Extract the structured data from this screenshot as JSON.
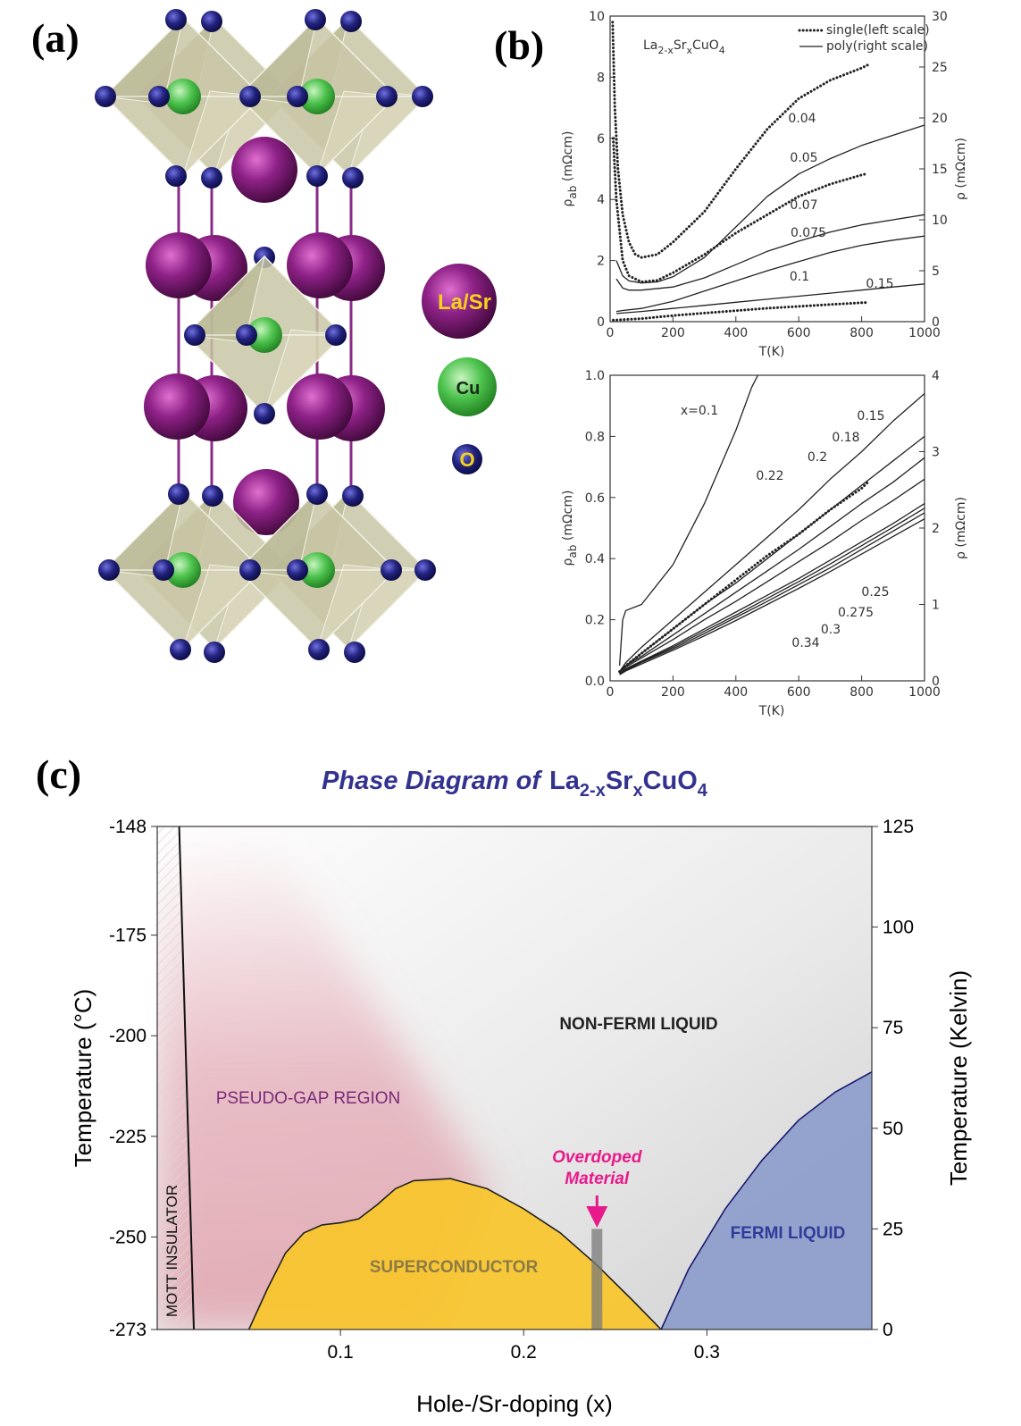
{
  "panel_labels": [
    "(a)",
    "(b)",
    "(c)"
  ],
  "structure": {
    "legend": [
      "La/Sr",
      "Cu",
      "O"
    ]
  },
  "chart_data": [
    {
      "type": "line",
      "title_parts": [
        "La",
        "2-x",
        "Sr",
        "x",
        "CuO",
        "4"
      ],
      "legend": [
        {
          "label": "single(left scale)",
          "style": "dotted"
        },
        {
          "label": "poly(right scale)",
          "style": "solid"
        }
      ],
      "x_label": "T(K)",
      "y_label_parts": [
        "ρ",
        "ab",
        " (mΩcm)"
      ],
      "y2_label": "ρ (mΩcm)",
      "xlim": [
        0,
        1000
      ],
      "xticks": [
        0,
        200,
        400,
        600,
        800,
        1000
      ],
      "ylim": [
        0,
        10
      ],
      "yticks": [
        0,
        2,
        4,
        6,
        8,
        10
      ],
      "y2lim": [
        0,
        30
      ],
      "y2ticks": [
        0,
        5,
        10,
        15,
        20,
        25,
        30
      ],
      "series": [
        {
          "name": "0.04",
          "color": "#222",
          "style": "dotted",
          "x": [
            8,
            15,
            25,
            40,
            60,
            80,
            100,
            150,
            200,
            300,
            400,
            500,
            600,
            700,
            800,
            820
          ],
          "values": [
            9.8,
            7,
            5,
            3.5,
            2.6,
            2.2,
            2.1,
            2.2,
            2.6,
            3.6,
            5.0,
            6.3,
            7.3,
            7.9,
            8.3,
            8.4
          ]
        },
        {
          "name": "0.07",
          "color": "#222",
          "style": "dotted",
          "x": [
            10,
            20,
            40,
            60,
            100,
            150,
            200,
            300,
            400,
            500,
            600,
            700,
            800,
            820
          ],
          "values": [
            6,
            4,
            2,
            1.5,
            1.3,
            1.35,
            1.6,
            2.2,
            2.9,
            3.5,
            4.1,
            4.5,
            4.8,
            4.85
          ]
        },
        {
          "name": "0.15",
          "color": "#222",
          "style": "dotted",
          "x": [
            10,
            100,
            200,
            300,
            400,
            500,
            600,
            700,
            800,
            820
          ],
          "values": [
            0.05,
            0.1,
            0.2,
            0.28,
            0.36,
            0.44,
            0.5,
            0.56,
            0.62,
            0.63
          ]
        },
        {
          "name": "0.05",
          "color": "#222",
          "style": "solid",
          "axis": "y2",
          "x": [
            20,
            40,
            60,
            100,
            150,
            200,
            300,
            400,
            500,
            600,
            700,
            800,
            900,
            1000
          ],
          "values": [
            6,
            4.5,
            4,
            3.8,
            3.9,
            4.4,
            6.3,
            9.3,
            12.3,
            14.5,
            16,
            17.3,
            18.3,
            19.3
          ]
        },
        {
          "name": "0.075",
          "color": "#222",
          "style": "solid",
          "axis": "y2",
          "x": [
            20,
            40,
            60,
            100,
            200,
            300,
            400,
            500,
            600,
            700,
            800,
            900,
            1000
          ],
          "values": [
            4.2,
            3.3,
            3.1,
            3.1,
            3.4,
            4.3,
            5.6,
            6.9,
            7.9,
            8.8,
            9.5,
            10,
            10.5
          ]
        },
        {
          "name": "0.1",
          "color": "#222",
          "style": "solid",
          "axis": "y2",
          "x": [
            20,
            40,
            100,
            200,
            300,
            400,
            500,
            600,
            700,
            800,
            900,
            1000
          ],
          "values": [
            1,
            1.1,
            1.3,
            2,
            3,
            4,
            5,
            5.9,
            6.8,
            7.5,
            8,
            8.4
          ]
        },
        {
          "color": "#222",
          "style": "solid",
          "axis": "y2",
          "x": [
            20,
            100,
            200,
            300,
            400,
            500,
            600,
            700,
            800,
            900,
            1000
          ],
          "values": [
            0.8,
            1,
            1.3,
            1.6,
            1.9,
            2.2,
            2.5,
            2.8,
            3.1,
            3.4,
            3.7
          ]
        }
      ]
    },
    {
      "type": "line",
      "x_label": "T(K)",
      "y_label_parts": [
        "ρ",
        "ab",
        " (mΩcm)"
      ],
      "y2_label": "ρ (mΩcm)",
      "xlim": [
        0,
        1000
      ],
      "xticks": [
        0,
        200,
        400,
        600,
        800,
        1000
      ],
      "ylim": [
        0,
        1
      ],
      "yticks": [
        {
          "value": 0,
          "label": "0.0"
        },
        0.2,
        0.4,
        0.6,
        0.8,
        {
          "value": 1,
          "label": "1.0"
        }
      ],
      "y2lim": [
        0,
        4
      ],
      "y2ticks": [
        0,
        1,
        2,
        3,
        4
      ],
      "series": [
        {
          "name": "x=0.1",
          "color": "#222",
          "style": "solid",
          "x": [
            30,
            40,
            50,
            100,
            200,
            300,
            400,
            450,
            470
          ],
          "values": [
            0.05,
            0.2,
            0.23,
            0.25,
            0.38,
            0.58,
            0.82,
            0.96,
            1.0
          ]
        },
        {
          "name": "0.15",
          "color": "#222",
          "style": "solid",
          "axis": "y2",
          "x": [
            30,
            50,
            100,
            200,
            300,
            400,
            500,
            600,
            700,
            800,
            900,
            1000
          ],
          "values": [
            0.12,
            0.24,
            0.44,
            0.8,
            1.16,
            1.52,
            1.88,
            2.24,
            2.64,
            3.0,
            3.4,
            3.76
          ]
        },
        {
          "name": "0.18",
          "color": "#222",
          "style": "solid",
          "axis": "y2",
          "x": [
            30,
            50,
            100,
            200,
            300,
            400,
            500,
            600,
            700,
            800,
            900,
            1000
          ],
          "values": [
            0.12,
            0.2,
            0.36,
            0.68,
            1.0,
            1.28,
            1.6,
            1.92,
            2.24,
            2.56,
            2.88,
            3.2
          ]
        },
        {
          "name": "0.2",
          "color": "#222",
          "style": "solid",
          "axis": "y2",
          "x": [
            30,
            50,
            100,
            200,
            300,
            400,
            500,
            600,
            700,
            800,
            900,
            1000
          ],
          "values": [
            0.12,
            0.2,
            0.32,
            0.6,
            0.88,
            1.16,
            1.44,
            1.72,
            2.02,
            2.32,
            2.6,
            2.92
          ]
        },
        {
          "name": "0.22",
          "color": "#222",
          "style": "solid",
          "axis": "y2",
          "x": [
            30,
            50,
            100,
            200,
            300,
            400,
            500,
            600,
            700,
            800,
            900,
            1000
          ],
          "values": [
            0.12,
            0.18,
            0.3,
            0.54,
            0.8,
            1.04,
            1.3,
            1.56,
            1.82,
            2.1,
            2.36,
            2.64
          ]
        },
        {
          "name": "0.25",
          "color": "#222",
          "style": "solid",
          "axis": "y2",
          "x": [
            30,
            50,
            100,
            200,
            300,
            400,
            500,
            600,
            700,
            800,
            900,
            1000
          ],
          "values": [
            0.1,
            0.16,
            0.26,
            0.46,
            0.68,
            0.9,
            1.12,
            1.34,
            1.58,
            1.82,
            2.06,
            2.32
          ]
        },
        {
          "name": "0.275",
          "color": "#222",
          "style": "solid",
          "axis": "y2",
          "x": [
            30,
            50,
            100,
            200,
            300,
            400,
            500,
            600,
            700,
            800,
            900,
            1000
          ],
          "values": [
            0.1,
            0.15,
            0.25,
            0.44,
            0.65,
            0.86,
            1.08,
            1.3,
            1.53,
            1.77,
            2.01,
            2.26
          ]
        },
        {
          "name": "0.3",
          "color": "#222",
          "style": "solid",
          "axis": "y2",
          "x": [
            30,
            50,
            100,
            200,
            300,
            400,
            500,
            600,
            700,
            800,
            900,
            1000
          ],
          "values": [
            0.09,
            0.14,
            0.24,
            0.42,
            0.62,
            0.83,
            1.04,
            1.26,
            1.48,
            1.72,
            1.96,
            2.2
          ]
        },
        {
          "name": "0.34",
          "color": "#222",
          "style": "solid",
          "axis": "y2",
          "x": [
            30,
            50,
            100,
            200,
            300,
            400,
            500,
            600,
            700,
            800,
            900,
            1000
          ],
          "values": [
            0.08,
            0.13,
            0.22,
            0.4,
            0.59,
            0.79,
            1.0,
            1.21,
            1.43,
            1.66,
            1.89,
            2.12
          ]
        },
        {
          "color": "#222",
          "style": "dotted",
          "x": [
            30,
            50,
            100,
            200,
            300,
            400,
            500,
            600,
            700,
            800,
            820
          ],
          "values": [
            0.03,
            0.05,
            0.09,
            0.17,
            0.25,
            0.33,
            0.41,
            0.48,
            0.56,
            0.63,
            0.65
          ]
        }
      ]
    },
    {
      "type": "area",
      "title": "Phase Diagram of",
      "title_formula_parts": [
        "La",
        "2-x",
        "Sr",
        "x",
        "CuO",
        "4"
      ],
      "x_label": "Hole-/Sr-doping (x)",
      "y_label": "Temperature (°C)",
      "y2_label": "Temperature (Kelvin)",
      "xlim": [
        0,
        0.39
      ],
      "xticks": [
        0.1,
        0.2,
        0.3
      ],
      "ylim": [
        -273,
        -148
      ],
      "yticks": [
        -273,
        -250,
        -225,
        -200,
        -175,
        -148
      ],
      "y2lim": [
        0,
        125
      ],
      "y2ticks": [
        0,
        25,
        50,
        75,
        100,
        125
      ],
      "series": [
        {
          "name": "SUPERCONDUCTOR",
          "style": "area",
          "color": "#f9c52a",
          "stroke": "#222",
          "label_color": "#8c7b45",
          "axis": "y2",
          "x": [
            0.05,
            0.06,
            0.07,
            0.08,
            0.09,
            0.1,
            0.11,
            0.12,
            0.13,
            0.14,
            0.16,
            0.18,
            0.2,
            0.22,
            0.24,
            0.26,
            0.275
          ],
          "values": [
            0,
            10,
            19,
            24,
            26,
            26.5,
            27.5,
            31,
            35,
            37,
            37.5,
            35,
            30,
            24,
            16,
            7,
            0
          ]
        },
        {
          "name": "FERMI LIQUID",
          "style": "area",
          "color": "#8d9dcc",
          "stroke": "#1a1a70",
          "label_color": "#2e3c9a",
          "axis": "y2",
          "x": [
            0.275,
            0.29,
            0.31,
            0.33,
            0.35,
            0.37,
            0.39
          ],
          "values": [
            0,
            15,
            30,
            42,
            52,
            59,
            64
          ]
        },
        {
          "name": "MOTT INSULATOR",
          "style": "line",
          "color": "#111",
          "stroke": "#111",
          "label_color": "#111",
          "axis": "y2",
          "x": [
            0.012,
            0.02
          ],
          "values": [
            125,
            0
          ]
        }
      ],
      "annotations": [
        {
          "text": "NON-FERMI LIQUID",
          "color": "#222"
        },
        {
          "text": "PSEUDO-GAP REGION",
          "color": "#7a2a7a"
        }
      ],
      "marker": {
        "label_parts": [
          "Overdoped",
          "Material"
        ],
        "color": "#e8198b",
        "x": 0.24,
        "value": 25
      }
    }
  ]
}
